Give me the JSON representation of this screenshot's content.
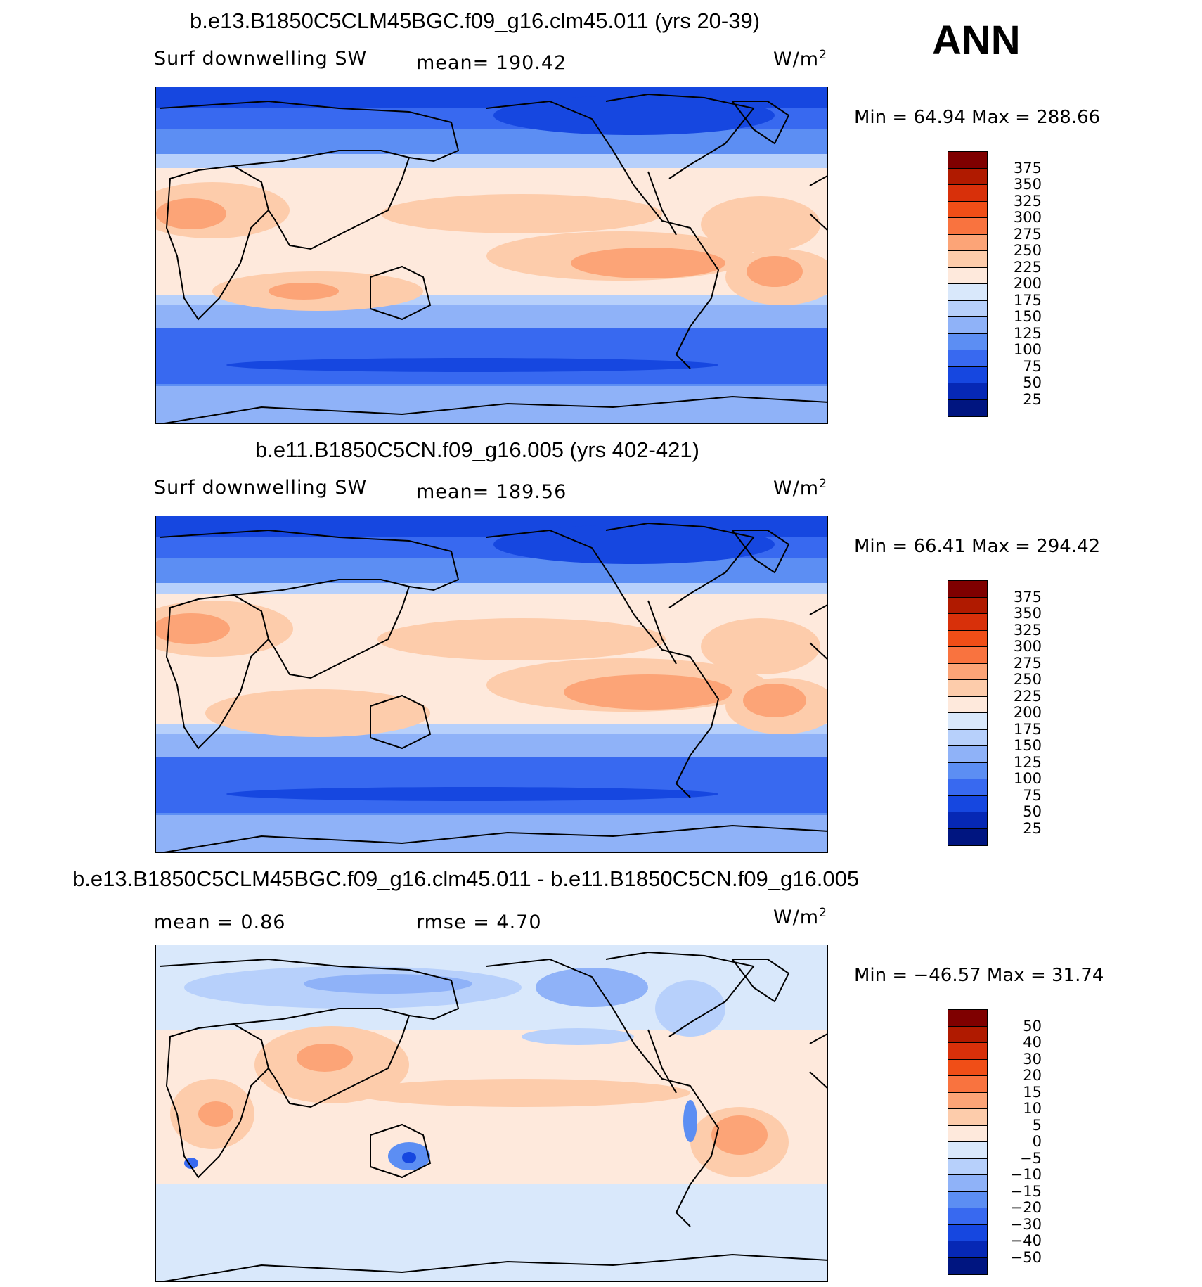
{
  "season": "ANN",
  "panels": [
    {
      "title": "b.e13.B1850C5CLM45BGC.f09_g16.clm45.011 (yrs 20-39)",
      "variable": "Surf downwelling SW",
      "stat_text": "mean=  190.42",
      "units": "W/m",
      "units_sup": "2",
      "min_max": "Min =   64.94  Max  =  288.66",
      "kind": "abs"
    },
    {
      "title": "b.e11.B1850C5CN.f09_g16.005 (yrs 402-421)",
      "variable": "Surf downwelling SW",
      "stat_text": "mean=  189.56",
      "units": "W/m",
      "units_sup": "2",
      "min_max": "Min =   66.41  Max  =  294.42",
      "kind": "abs"
    },
    {
      "title": "b.e13.B1850C5CLM45BGC.f09_g16.clm45.011 - b.e11.B1850C5CN.f09_g16.005",
      "variable": "mean =     0.86",
      "stat_text": "rmse =     4.70",
      "units": "W/m",
      "units_sup": "2",
      "min_max": "Min  =  −46.57  Max  =    31.74",
      "kind": "diff"
    }
  ],
  "colorbars": {
    "abs": {
      "levels": [
        "375",
        "350",
        "325",
        "300",
        "275",
        "250",
        "225",
        "200",
        "175",
        "150",
        "125",
        "100",
        "75",
        "50",
        "25"
      ],
      "colors": [
        "#7f0000",
        "#b01a00",
        "#d8300a",
        "#f04e17",
        "#f9733f",
        "#fca477",
        "#fdccab",
        "#fee9dc",
        "#d9e8fb",
        "#b7d0fb",
        "#8fb2f8",
        "#5c8ef3",
        "#3869f0",
        "#1647e0",
        "#0628b5",
        "#001580"
      ]
    },
    "diff": {
      "levels": [
        "50",
        "40",
        "30",
        "20",
        "15",
        "10",
        "5",
        "0",
        "−5",
        "−10",
        "−15",
        "−20",
        "−30",
        "−40",
        "−50"
      ],
      "colors": [
        "#7f0000",
        "#b01a00",
        "#d8300a",
        "#f04e17",
        "#f9733f",
        "#fca477",
        "#fdccab",
        "#fee9dc",
        "#d9e8fb",
        "#b7d0fb",
        "#8fb2f8",
        "#5c8ef3",
        "#3869f0",
        "#1647e0",
        "#0628b5",
        "#001580"
      ]
    }
  }
}
